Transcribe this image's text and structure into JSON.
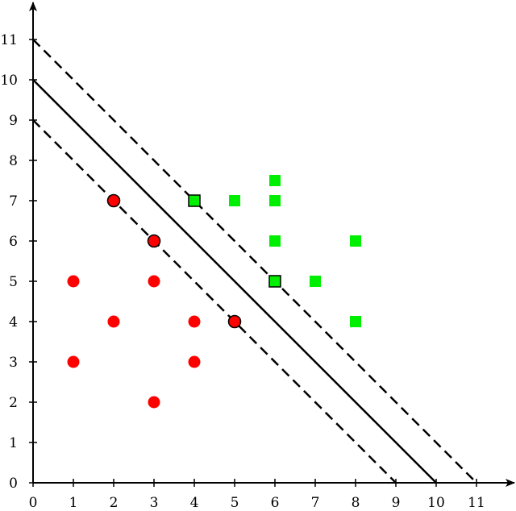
{
  "chart_data": {
    "type": "scatter",
    "title": "",
    "xlabel": "",
    "ylabel": "",
    "xlim": [
      0,
      11.9
    ],
    "ylim": [
      0,
      11.9
    ],
    "xticks": [
      0,
      1,
      2,
      3,
      4,
      5,
      6,
      7,
      8,
      9,
      10,
      11
    ],
    "yticks": [
      0,
      1,
      2,
      3,
      4,
      5,
      6,
      7,
      8,
      9,
      10,
      11
    ],
    "grid": false,
    "series": [
      {
        "marker": "circle",
        "color": "#ff0000",
        "points": [
          {
            "x": 2,
            "y": 7,
            "support": true
          },
          {
            "x": 3,
            "y": 6,
            "support": true
          },
          {
            "x": 5,
            "y": 4,
            "support": true
          },
          {
            "x": 1,
            "y": 5
          },
          {
            "x": 3,
            "y": 5
          },
          {
            "x": 2,
            "y": 4
          },
          {
            "x": 4,
            "y": 4
          },
          {
            "x": 1,
            "y": 3
          },
          {
            "x": 4,
            "y": 3
          },
          {
            "x": 3,
            "y": 2
          }
        ]
      },
      {
        "marker": "square",
        "color": "#00ee00",
        "points": [
          {
            "x": 4,
            "y": 7,
            "support": true
          },
          {
            "x": 6,
            "y": 5,
            "support": true
          },
          {
            "x": 5,
            "y": 7
          },
          {
            "x": 6,
            "y": 7.5
          },
          {
            "x": 6,
            "y": 7
          },
          {
            "x": 6,
            "y": 6
          },
          {
            "x": 8,
            "y": 6
          },
          {
            "x": 7,
            "y": 5
          },
          {
            "x": 8,
            "y": 4
          }
        ]
      }
    ],
    "lines": [
      {
        "style": "solid",
        "points": [
          [
            0,
            10
          ],
          [
            10,
            0
          ]
        ]
      },
      {
        "style": "dashed",
        "points": [
          [
            0,
            11
          ],
          [
            11,
            0
          ]
        ]
      },
      {
        "style": "dashed",
        "points": [
          [
            0,
            9
          ],
          [
            9,
            0
          ]
        ]
      }
    ]
  }
}
